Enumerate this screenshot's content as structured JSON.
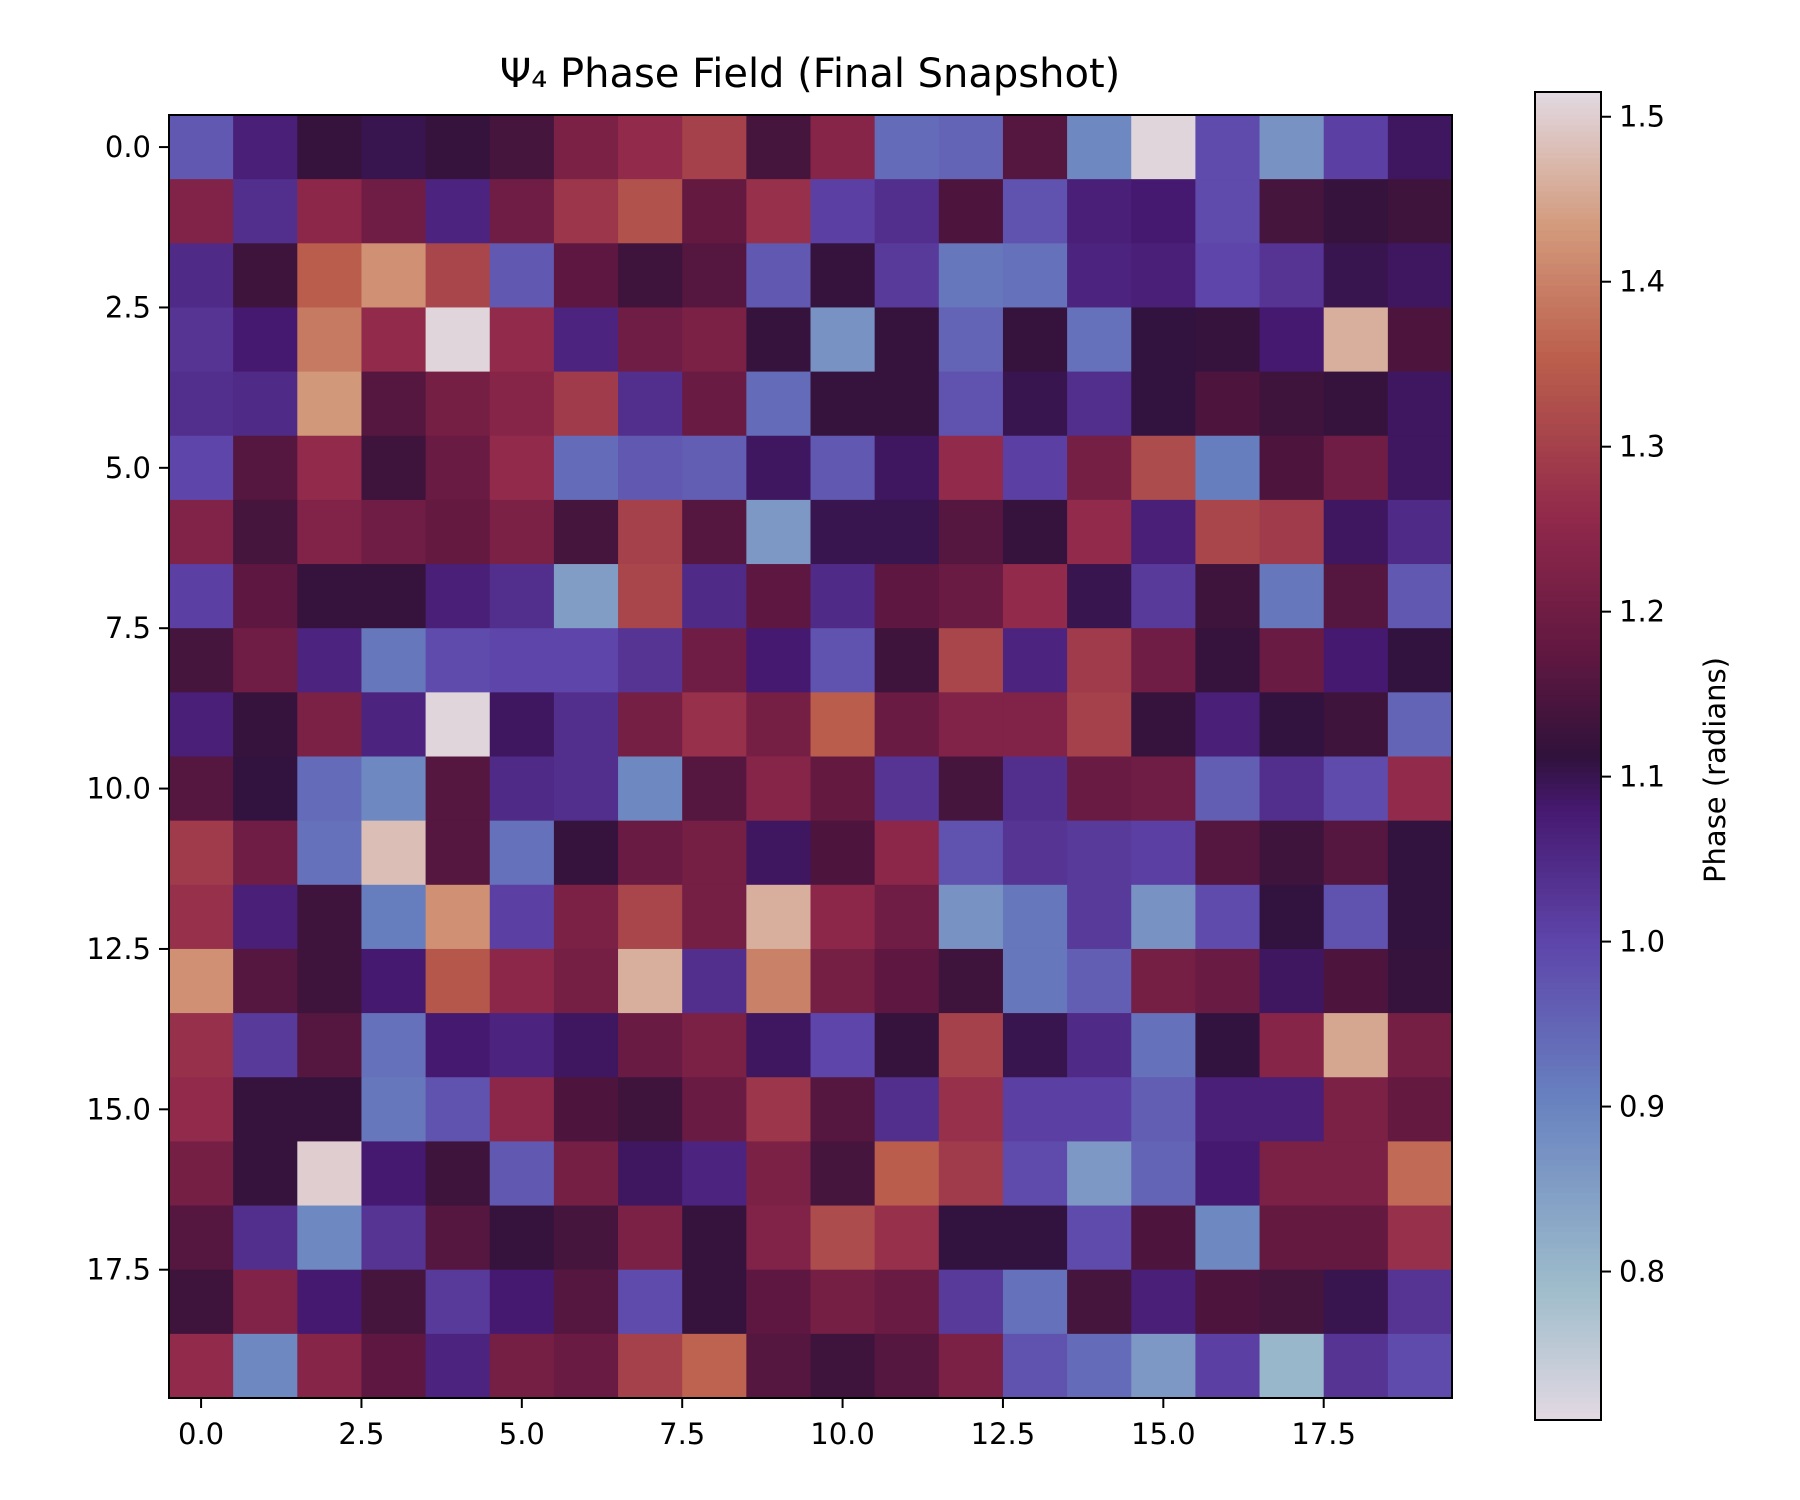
{
  "chart_data": {
    "type": "heatmap",
    "title": "Ψ₄ Phase Field (Final Snapshot)",
    "xlabel": "",
    "ylabel": "",
    "colorbar_label": "Phase (radians)",
    "rows": 20,
    "cols": 20,
    "x_range": [
      -0.5,
      19.5
    ],
    "y_range": [
      -0.5,
      19.5
    ],
    "y_inverted": true,
    "x_ticks": [
      0.0,
      2.5,
      5.0,
      7.5,
      10.0,
      12.5,
      15.0,
      17.5
    ],
    "y_ticks": [
      0.0,
      2.5,
      5.0,
      7.5,
      10.0,
      12.5,
      15.0,
      17.5
    ],
    "colorbar_range": [
      0.71,
      1.515
    ],
    "colorbar_ticks": [
      0.8,
      0.9,
      1.0,
      1.1,
      1.2,
      1.3,
      1.4,
      1.5
    ],
    "colormap": "twilight",
    "values": [
      [
        0.97,
        1.07,
        1.12,
        1.1,
        1.12,
        1.14,
        1.22,
        1.26,
        1.3,
        1.14,
        1.24,
        0.94,
        0.95,
        1.16,
        0.89,
        1.51,
        0.99,
        0.87,
        1.01,
        1.09
      ],
      [
        1.23,
        1.04,
        1.25,
        1.2,
        1.06,
        1.2,
        1.28,
        1.33,
        1.18,
        1.27,
        1.01,
        1.04,
        1.15,
        0.98,
        1.07,
        1.08,
        0.99,
        1.14,
        1.12,
        1.13
      ],
      [
        1.05,
        1.13,
        1.35,
        1.42,
        1.31,
        0.97,
        1.17,
        1.13,
        1.16,
        0.97,
        1.12,
        1.02,
        0.92,
        0.93,
        1.06,
        1.07,
        1.0,
        1.03,
        1.1,
        1.09
      ],
      [
        1.03,
        1.08,
        1.39,
        1.26,
        1.51,
        1.26,
        1.06,
        1.2,
        1.22,
        1.12,
        0.87,
        1.12,
        0.95,
        1.12,
        0.93,
        1.11,
        1.12,
        1.08,
        1.46,
        1.15
      ],
      [
        1.04,
        1.05,
        1.43,
        1.16,
        1.21,
        1.24,
        1.29,
        1.04,
        1.19,
        0.94,
        1.12,
        1.12,
        0.98,
        1.1,
        1.04,
        1.11,
        1.15,
        1.13,
        1.12,
        1.09
      ],
      [
        1.0,
        1.16,
        1.26,
        1.13,
        1.19,
        1.26,
        0.94,
        0.97,
        0.96,
        1.09,
        0.97,
        1.09,
        1.26,
        1.01,
        1.21,
        1.32,
        0.91,
        1.15,
        1.2,
        1.09
      ],
      [
        1.23,
        1.14,
        1.23,
        1.2,
        1.18,
        1.22,
        1.14,
        1.3,
        1.16,
        0.86,
        1.1,
        1.1,
        1.16,
        1.12,
        1.26,
        1.07,
        1.31,
        1.29,
        1.09,
        1.05
      ],
      [
        1.01,
        1.17,
        1.12,
        1.12,
        1.07,
        1.04,
        0.85,
        1.31,
        1.05,
        1.17,
        1.05,
        1.17,
        1.19,
        1.26,
        1.1,
        1.02,
        1.13,
        0.92,
        1.16,
        0.97
      ],
      [
        1.14,
        1.2,
        1.06,
        0.92,
        0.99,
        1.0,
        1.0,
        1.03,
        1.2,
        1.08,
        0.98,
        1.13,
        1.31,
        1.06,
        1.29,
        1.2,
        1.12,
        1.19,
        1.08,
        1.11
      ],
      [
        1.07,
        1.12,
        1.22,
        1.06,
        1.51,
        1.09,
        1.04,
        1.21,
        1.27,
        1.21,
        1.35,
        1.19,
        1.23,
        1.23,
        1.3,
        1.12,
        1.07,
        1.11,
        1.13,
        0.95
      ],
      [
        1.16,
        1.11,
        0.94,
        0.89,
        1.16,
        1.05,
        1.04,
        0.89,
        1.16,
        1.24,
        1.18,
        1.03,
        1.14,
        1.04,
        1.19,
        1.2,
        0.96,
        1.04,
        0.99,
        1.26
      ],
      [
        1.29,
        1.2,
        0.93,
        1.48,
        1.16,
        0.93,
        1.12,
        1.19,
        1.21,
        1.09,
        1.15,
        1.25,
        0.98,
        1.03,
        1.02,
        1.01,
        1.16,
        1.13,
        1.16,
        1.11
      ],
      [
        1.27,
        1.07,
        1.13,
        0.91,
        1.42,
        1.01,
        1.22,
        1.31,
        1.21,
        1.46,
        1.25,
        1.2,
        0.87,
        0.92,
        1.02,
        0.87,
        0.99,
        1.11,
        0.98,
        1.11
      ],
      [
        1.42,
        1.16,
        1.13,
        1.08,
        1.34,
        1.25,
        1.21,
        1.46,
        1.04,
        1.4,
        1.21,
        1.17,
        1.13,
        0.92,
        0.96,
        1.21,
        1.19,
        1.09,
        1.15,
        1.12
      ],
      [
        1.27,
        1.02,
        1.16,
        0.93,
        1.08,
        1.06,
        1.09,
        1.19,
        1.22,
        1.09,
        1.0,
        1.12,
        1.3,
        1.1,
        1.05,
        0.93,
        1.11,
        1.24,
        1.45,
        1.21
      ],
      [
        1.26,
        1.12,
        1.12,
        0.92,
        0.98,
        1.25,
        1.15,
        1.13,
        1.19,
        1.28,
        1.16,
        1.04,
        1.27,
        1.01,
        1.01,
        0.96,
        1.07,
        1.07,
        1.22,
        1.18
      ],
      [
        1.21,
        1.12,
        1.5,
        1.08,
        1.13,
        0.97,
        1.21,
        1.09,
        1.06,
        1.22,
        1.14,
        1.35,
        1.29,
        0.99,
        0.86,
        0.95,
        1.08,
        1.22,
        1.22,
        1.37
      ],
      [
        1.16,
        1.04,
        0.89,
        1.03,
        1.16,
        1.12,
        1.14,
        1.22,
        1.12,
        1.23,
        1.32,
        1.27,
        1.11,
        1.11,
        0.99,
        1.15,
        0.89,
        1.18,
        1.18,
        1.27
      ],
      [
        1.13,
        1.23,
        1.08,
        1.14,
        1.02,
        1.08,
        1.16,
        0.99,
        1.12,
        1.17,
        1.21,
        1.19,
        1.02,
        0.93,
        1.14,
        1.07,
        1.15,
        1.14,
        1.1,
        1.03
      ],
      [
        1.26,
        0.89,
        1.24,
        1.17,
        1.06,
        1.21,
        1.19,
        1.3,
        1.36,
        1.16,
        1.13,
        1.16,
        1.22,
        0.98,
        0.94,
        0.86,
        1.01,
        0.8,
        1.03,
        0.99
      ]
    ]
  }
}
